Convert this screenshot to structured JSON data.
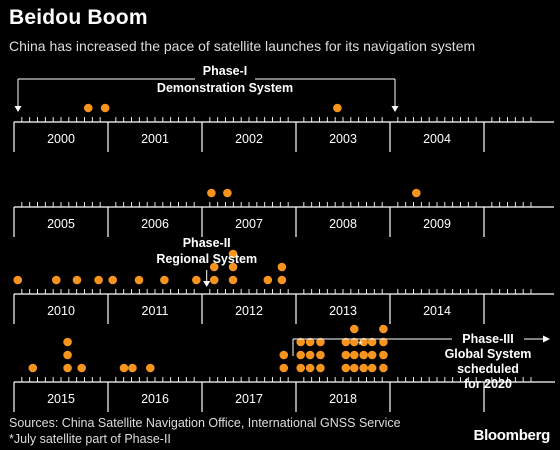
{
  "title": "Beidou Boom",
  "subtitle": "China has increased the pace of satellite launches for its navigation system",
  "source": "Sources: China Satellite Navigation Office, International GNSS Service",
  "note": "*July satellite part of Phase-II",
  "brand": "Bloomberg",
  "colors": {
    "background": "#000000",
    "dot": "#f7941d",
    "axis": "#ffffff",
    "text": "#ffffff"
  },
  "chart_data": {
    "type": "scatter",
    "title": "Beidou Boom",
    "subtitle": "China has increased the pace of satellite launches for its navigation system",
    "rows": [
      {
        "years": [
          2000,
          2001,
          2002,
          2003,
          2004
        ],
        "launches": [
          [
            2000.79,
            1
          ],
          [
            2000.97,
            1
          ],
          [
            2003.44,
            1
          ]
        ]
      },
      {
        "years": [
          2005,
          2006,
          2007,
          2008,
          2009
        ],
        "launches": [
          [
            2007.1,
            1
          ],
          [
            2007.27,
            1
          ],
          [
            2009.28,
            1
          ]
        ]
      },
      {
        "years": [
          2010,
          2011,
          2012,
          2013,
          2014
        ],
        "launches": [
          [
            2010.04,
            1
          ],
          [
            2010.45,
            1
          ],
          [
            2010.67,
            1
          ],
          [
            2010.9,
            1
          ],
          [
            2011.05,
            1
          ],
          [
            2011.33,
            1
          ],
          [
            2011.6,
            1
          ],
          [
            2011.94,
            1
          ],
          [
            2012.13,
            2
          ],
          [
            2012.33,
            3
          ],
          [
            2012.7,
            1
          ],
          [
            2012.85,
            2
          ]
        ]
      },
      {
        "years": [
          2015,
          2016,
          2017,
          2018
        ],
        "launches": [
          [
            2015.2,
            1
          ],
          [
            2015.57,
            3
          ],
          [
            2015.72,
            1
          ],
          [
            2016.17,
            1
          ],
          [
            2016.26,
            1
          ],
          [
            2016.45,
            1
          ],
          [
            2017.87,
            2
          ],
          [
            2018.05,
            3
          ],
          [
            2018.15,
            3
          ],
          [
            2018.26,
            3
          ],
          [
            2018.53,
            3
          ],
          [
            2018.62,
            4
          ],
          [
            2018.72,
            3
          ],
          [
            2018.81,
            3
          ],
          [
            2018.93,
            4
          ]
        ]
      }
    ],
    "annotations": {
      "phase1": {
        "line1": "Phase-I",
        "line2": "Demonstration System",
        "start": 2000.0,
        "end": 2004.0
      },
      "phase2": {
        "line1": "Phase-II",
        "line2": "Regional System",
        "at": 2012.05
      },
      "phase3": {
        "line1": "Phase-III",
        "line2": "Global System",
        "line3": "scheduled",
        "line4": "for 2020",
        "start": 2018.0
      },
      "asterisk": {
        "label": "*",
        "at": 2018.62
      }
    }
  }
}
